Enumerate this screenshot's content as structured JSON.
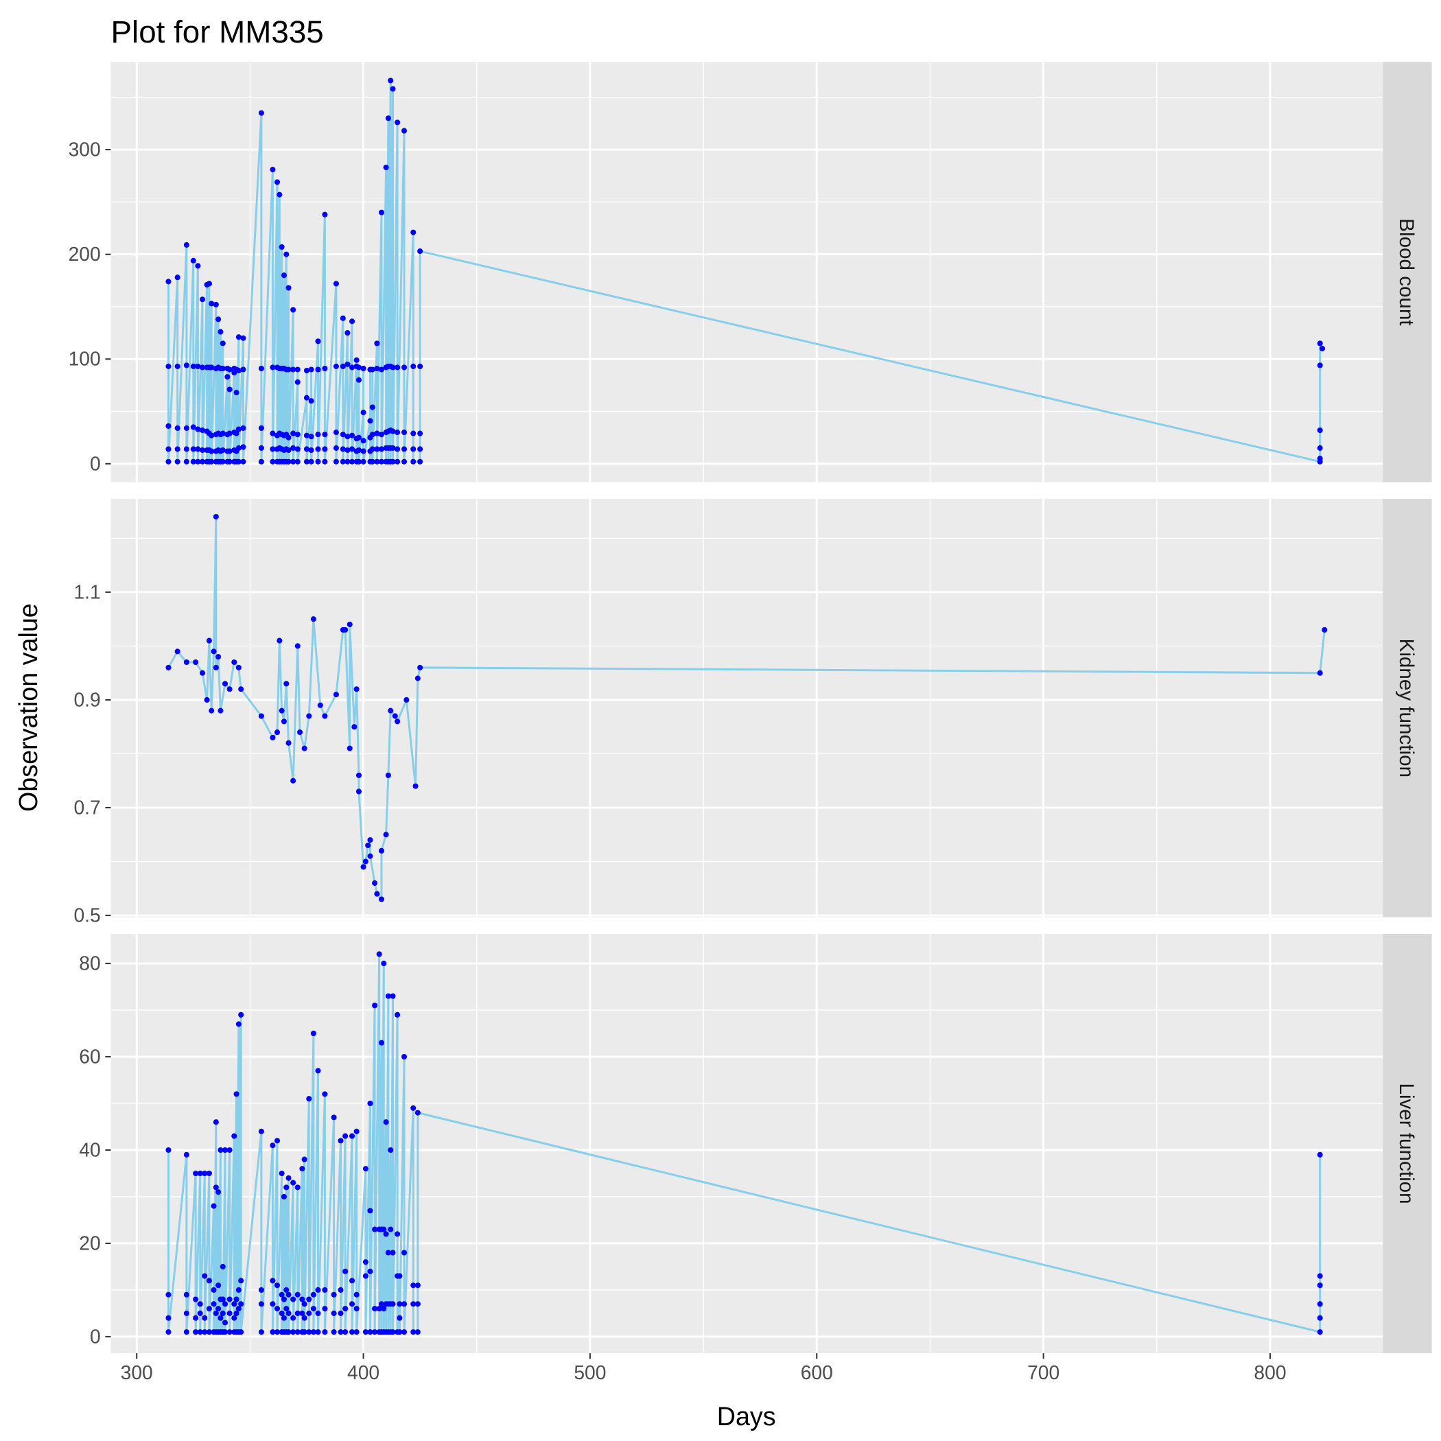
{
  "title": "Plot for MM335",
  "x_label": "Days",
  "y_label": "Observation value",
  "chart_data": [
    {
      "type": "line",
      "facet": "Blood count",
      "line_color": "#87CEEB",
      "point_color": "#0000FF",
      "grid": true,
      "minor_grid": true,
      "xlim": [
        288.6,
        849.7
      ],
      "xticks": [
        300,
        400,
        500,
        600,
        700,
        800
      ],
      "ylim": [
        -17.6,
        383.8
      ],
      "yticks": [
        0,
        100,
        200,
        300
      ],
      "x": [
        314,
        314,
        314,
        314,
        314,
        318,
        318,
        318,
        318,
        318,
        322,
        322,
        322,
        322,
        322,
        325,
        325,
        325,
        325,
        325,
        327,
        327,
        327,
        327,
        327,
        329,
        329,
        329,
        329,
        329,
        331,
        331,
        331,
        331,
        331,
        332,
        332,
        332,
        332,
        332,
        333,
        333,
        333,
        333,
        333,
        335,
        335,
        335,
        335,
        335,
        336,
        336,
        336,
        336,
        336,
        337,
        337,
        337,
        337,
        337,
        338,
        338,
        338,
        338,
        338,
        340,
        340,
        340,
        340,
        340,
        341,
        341,
        341,
        341,
        341,
        343,
        343,
        343,
        343,
        343,
        344,
        344,
        344,
        344,
        344,
        345,
        345,
        345,
        345,
        345,
        347,
        347,
        347,
        347,
        347,
        355,
        355,
        355,
        355,
        355,
        360,
        360,
        360,
        360,
        360,
        362,
        362,
        362,
        362,
        362,
        363,
        363,
        363,
        363,
        363,
        364,
        364,
        364,
        364,
        364,
        365,
        365,
        365,
        365,
        365,
        366,
        366,
        366,
        366,
        366,
        367,
        367,
        367,
        367,
        367,
        369,
        369,
        369,
        369,
        369,
        371,
        371,
        371,
        371,
        371,
        375,
        375,
        375,
        375,
        375,
        377,
        377,
        377,
        377,
        377,
        380,
        380,
        380,
        380,
        380,
        383,
        383,
        383,
        383,
        383,
        388,
        388,
        388,
        388,
        388,
        391,
        391,
        391,
        391,
        391,
        393,
        393,
        393,
        393,
        393,
        395,
        395,
        395,
        395,
        395,
        397,
        397,
        397,
        397,
        397,
        398,
        398,
        398,
        398,
        398,
        400,
        400,
        400,
        400,
        400,
        403,
        403,
        403,
        403,
        403,
        404,
        404,
        404,
        404,
        404,
        406,
        406,
        406,
        406,
        406,
        408,
        408,
        408,
        408,
        408,
        410,
        410,
        410,
        410,
        410,
        411,
        411,
        411,
        411,
        411,
        412,
        412,
        412,
        412,
        412,
        413,
        413,
        413,
        413,
        413,
        415,
        415,
        415,
        415,
        415,
        418,
        418,
        418,
        418,
        418,
        422,
        422,
        422,
        422,
        422,
        425,
        425,
        425,
        425,
        425,
        822,
        822,
        822,
        822,
        822,
        822,
        823
      ],
      "values": [
        174,
        93,
        36,
        14,
        2,
        178,
        93,
        34,
        14,
        2,
        209,
        94,
        34,
        14,
        2,
        194,
        93,
        35,
        14,
        2,
        189,
        93,
        33,
        14,
        2,
        157,
        92,
        32,
        13,
        2,
        171,
        92,
        31,
        13,
        2,
        172,
        92,
        29,
        13,
        2,
        153,
        92,
        27,
        12,
        2,
        152,
        91,
        28,
        12,
        2,
        138,
        92,
        29,
        13,
        2,
        126,
        91,
        28,
        12,
        2,
        115,
        91,
        29,
        13,
        2,
        83,
        91,
        28,
        12,
        2,
        71,
        90,
        29,
        12,
        2,
        87,
        91,
        30,
        13,
        2,
        68,
        90,
        29,
        12,
        2,
        121,
        89,
        33,
        15,
        2,
        120,
        90,
        34,
        16,
        2,
        335,
        91,
        34,
        15,
        2,
        281,
        92,
        29,
        14,
        2,
        269,
        92,
        27,
        14,
        2,
        257,
        91,
        29,
        15,
        2,
        207,
        91,
        28,
        14,
        2,
        180,
        91,
        27,
        13,
        2,
        200,
        90,
        28,
        14,
        2,
        168,
        90,
        25,
        13,
        2,
        147,
        90,
        29,
        15,
        2,
        78,
        90,
        28,
        14,
        2,
        63,
        89,
        27,
        14,
        2,
        60,
        90,
        26,
        13,
        2,
        117,
        90,
        28,
        14,
        2,
        238,
        91,
        28,
        14,
        2,
        172,
        93,
        30,
        15,
        2,
        139,
        93,
        28,
        14,
        2,
        125,
        95,
        26,
        13,
        2,
        136,
        92,
        27,
        14,
        2,
        99,
        93,
        24,
        12,
        2,
        80,
        92,
        25,
        13,
        2,
        49,
        91,
        22,
        12,
        2,
        41,
        90,
        25,
        12,
        2,
        54,
        90,
        28,
        14,
        2,
        115,
        91,
        29,
        14,
        2,
        240,
        90,
        28,
        14,
        2,
        283,
        92,
        30,
        15,
        2,
        330,
        93,
        31,
        15,
        2,
        366,
        93,
        32,
        15,
        2,
        358,
        92,
        31,
        15,
        2,
        326,
        92,
        30,
        14,
        2,
        318,
        92,
        30,
        14,
        2,
        221,
        93,
        29,
        14,
        2,
        2,
        14,
        29,
        93,
        203,
        2,
        5,
        15,
        32,
        94,
        115,
        110
      ]
    },
    {
      "type": "line",
      "facet": "Kidney function",
      "line_color": "#87CEEB",
      "point_color": "#0000FF",
      "grid": true,
      "minor_grid": true,
      "xlim": [
        288.6,
        849.7
      ],
      "xticks": [
        300,
        400,
        500,
        600,
        700,
        800
      ],
      "ylim": [
        0.4966,
        1.2732
      ],
      "yticks": [
        0.5,
        0.7,
        0.9,
        1.1
      ],
      "x": [
        314,
        318,
        322,
        326,
        329,
        331,
        332,
        333,
        334,
        335,
        335,
        336,
        337,
        339,
        341,
        343,
        345,
        346,
        355,
        360,
        362,
        363,
        364,
        365,
        366,
        367,
        369,
        371,
        372,
        374,
        376,
        378,
        381,
        383,
        388,
        391,
        392,
        394,
        394,
        396,
        397,
        398,
        398,
        400,
        401,
        402,
        403,
        403,
        405,
        406,
        408,
        408,
        410,
        411,
        412,
        414,
        415,
        419,
        423,
        424,
        425,
        822,
        824
      ],
      "values": [
        0.96,
        0.99,
        0.97,
        0.97,
        0.95,
        0.9,
        1.01,
        0.88,
        0.99,
        1.24,
        0.96,
        0.98,
        0.88,
        0.93,
        0.92,
        0.97,
        0.96,
        0.92,
        0.87,
        0.83,
        0.84,
        1.01,
        0.88,
        0.86,
        0.93,
        0.82,
        0.75,
        1.0,
        0.84,
        0.81,
        0.87,
        1.05,
        0.89,
        0.87,
        0.91,
        1.03,
        1.03,
        0.81,
        1.04,
        0.85,
        0.92,
        0.76,
        0.73,
        0.59,
        0.6,
        0.63,
        0.64,
        0.61,
        0.56,
        0.54,
        0.53,
        0.62,
        0.65,
        0.76,
        0.88,
        0.87,
        0.86,
        0.9,
        0.74,
        0.94,
        0.96,
        0.95,
        1.03
      ]
    },
    {
      "type": "line",
      "facet": "Liver function",
      "line_color": "#87CEEB",
      "point_color": "#0000FF",
      "grid": true,
      "minor_grid": true,
      "xlim": [
        288.6,
        849.7
      ],
      "xticks": [
        300,
        400,
        500,
        600,
        700,
        800
      ],
      "ylim": [
        -3.56,
        86.34
      ],
      "yticks": [
        0,
        20,
        40,
        60,
        80
      ],
      "x": [
        314,
        314,
        314,
        314,
        322,
        322,
        322,
        322,
        326,
        326,
        326,
        326,
        328,
        328,
        328,
        328,
        330,
        330,
        330,
        330,
        332,
        332,
        332,
        332,
        334,
        334,
        334,
        334,
        335,
        335,
        335,
        335,
        336,
        336,
        336,
        336,
        337,
        337,
        337,
        337,
        338,
        338,
        338,
        338,
        339,
        339,
        339,
        339,
        341,
        341,
        341,
        341,
        343,
        343,
        343,
        343,
        344,
        344,
        344,
        344,
        345,
        345,
        345,
        345,
        346,
        346,
        346,
        346,
        355,
        355,
        355,
        355,
        360,
        360,
        360,
        360,
        362,
        362,
        362,
        362,
        364,
        364,
        364,
        364,
        365,
        365,
        365,
        365,
        366,
        366,
        366,
        366,
        367,
        367,
        367,
        367,
        369,
        369,
        369,
        369,
        371,
        371,
        371,
        371,
        373,
        373,
        373,
        373,
        374,
        374,
        374,
        374,
        376,
        376,
        376,
        376,
        378,
        378,
        378,
        378,
        380,
        380,
        380,
        380,
        383,
        383,
        383,
        383,
        387,
        387,
        387,
        387,
        390,
        390,
        390,
        390,
        392,
        392,
        392,
        392,
        395,
        395,
        395,
        395,
        397,
        397,
        397,
        397,
        401,
        401,
        401,
        401,
        403,
        403,
        403,
        403,
        405,
        405,
        405,
        405,
        407,
        407,
        407,
        407,
        408,
        408,
        408,
        408,
        409,
        409,
        409,
        409,
        410,
        410,
        410,
        410,
        411,
        411,
        411,
        411,
        412,
        412,
        412,
        412,
        413,
        413,
        413,
        413,
        415,
        415,
        415,
        415,
        416,
        416,
        416,
        416,
        418,
        418,
        418,
        418,
        422,
        422,
        422,
        422,
        424,
        424,
        424,
        424,
        822,
        822,
        822,
        822,
        822,
        822
      ],
      "values": [
        40,
        9,
        4,
        1,
        39,
        9,
        5,
        1,
        35,
        8,
        4,
        1,
        35,
        7,
        5,
        1,
        35,
        13,
        4,
        1,
        35,
        12,
        6,
        1,
        28,
        10,
        7,
        1,
        46,
        32,
        5,
        1,
        31,
        11,
        6,
        1,
        40,
        8,
        4,
        1,
        15,
        8,
        5,
        1,
        40,
        7,
        3,
        1,
        40,
        8,
        5,
        1,
        43,
        7,
        4,
        1,
        52,
        8,
        5,
        1,
        67,
        10,
        6,
        1,
        69,
        12,
        7,
        1,
        44,
        10,
        7,
        1,
        41,
        12,
        7,
        1,
        42,
        11,
        6,
        1,
        35,
        9,
        5,
        1,
        30,
        8,
        4,
        1,
        32,
        10,
        6,
        1,
        34,
        9,
        5,
        1,
        33,
        8,
        4,
        1,
        32,
        9,
        5,
        1,
        36,
        8,
        5,
        1,
        38,
        7,
        4,
        1,
        51,
        8,
        5,
        1,
        65,
        9,
        6,
        1,
        57,
        10,
        5,
        1,
        52,
        10,
        6,
        1,
        47,
        9,
        5,
        1,
        42,
        10,
        5,
        1,
        43,
        14,
        6,
        1,
        43,
        12,
        7,
        1,
        44,
        9,
        6,
        1,
        36,
        16,
        13,
        1,
        50,
        27,
        14,
        1,
        71,
        23,
        6,
        1,
        82,
        23,
        6,
        1,
        63,
        23,
        7,
        1,
        80,
        23,
        6,
        1,
        46,
        22,
        7,
        1,
        73,
        18,
        7,
        1,
        40,
        23,
        7,
        1,
        73,
        18,
        7,
        1,
        69,
        22,
        13,
        1,
        13,
        7,
        4,
        1,
        60,
        18,
        7,
        1,
        49,
        11,
        7,
        1,
        1,
        7,
        11,
        48,
        1,
        4,
        7,
        11,
        13,
        39
      ]
    }
  ]
}
